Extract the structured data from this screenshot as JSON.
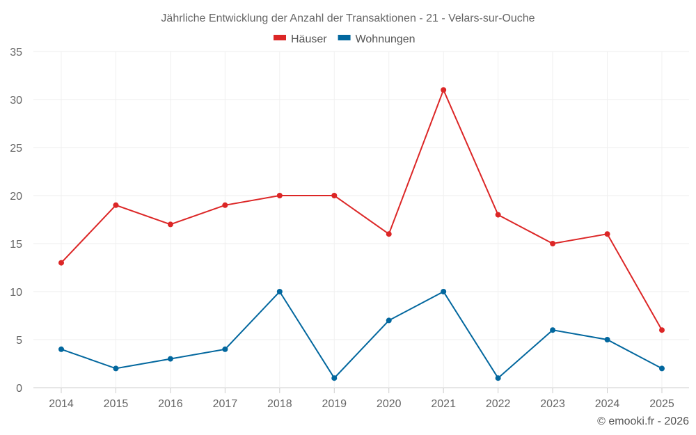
{
  "chart_data": {
    "type": "line",
    "title": "Jährliche Entwicklung der Anzahl der Transaktionen - 21 - Velars-sur-Ouche",
    "categories": [
      "2014",
      "2015",
      "2016",
      "2017",
      "2018",
      "2019",
      "2020",
      "2021",
      "2022",
      "2023",
      "2024",
      "2025"
    ],
    "series": [
      {
        "name": "Häuser",
        "color": "#dc2626",
        "values": [
          13,
          19,
          17,
          19,
          20,
          20,
          16,
          31,
          18,
          15,
          16,
          6
        ]
      },
      {
        "name": "Wohnungen",
        "color": "#02679e",
        "values": [
          4,
          2,
          3,
          4,
          10,
          1,
          7,
          10,
          1,
          6,
          5,
          2
        ]
      }
    ],
    "ylim": [
      0,
      35
    ],
    "yticks": [
      0,
      5,
      10,
      15,
      20,
      25,
      30,
      35
    ],
    "xlabel": "",
    "ylabel": "",
    "grid": true,
    "legend_position": "top-center"
  },
  "credit": "© emooki.fr - 2026"
}
